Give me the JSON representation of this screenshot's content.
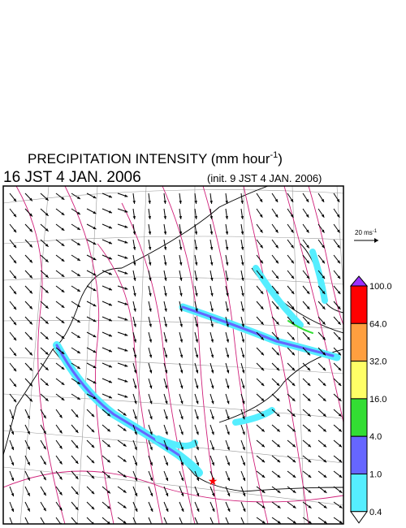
{
  "header": {
    "title": "PRECIPITATION INTENSITY (mm hour",
    "title_sup": "-1",
    "title_close": ")",
    "time": "16 JST 4 JAN. 2006",
    "init": "(init. 9 JST 4 JAN. 2006)"
  },
  "scale": {
    "label": "20 ms",
    "sup": "-1"
  },
  "legend": {
    "levels": [
      "100.0",
      "64.0",
      "32.0",
      "16.0",
      "4.0",
      "1.0",
      "0.4"
    ],
    "colors": [
      "#9b30ff",
      "#ff0000",
      "#ff9f3f",
      "#ffff66",
      "#33dd33",
      "#6666ff",
      "#55eeff",
      "#ffffff"
    ]
  }
}
